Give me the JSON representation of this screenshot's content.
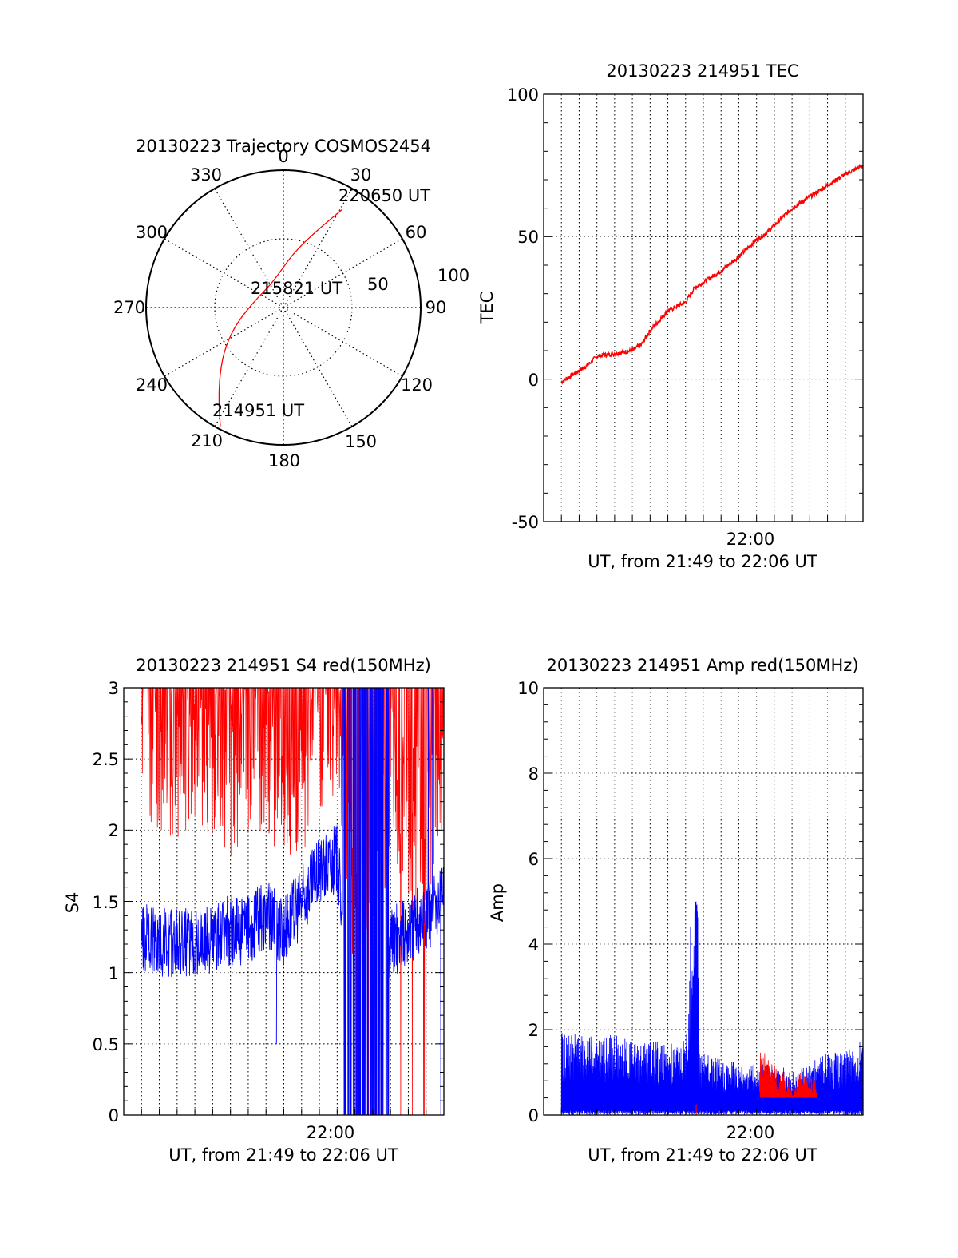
{
  "chart_data": [
    {
      "type": "polar",
      "title": "20130223 Trajectory COSMOS2454",
      "azimuth_labels": [
        "0",
        "30",
        "60",
        "90",
        "120",
        "150",
        "180",
        "210",
        "240",
        "270",
        "300",
        "330"
      ],
      "elevation_labels": [
        "50",
        "100"
      ],
      "trajectory": [
        {
          "azimuth": 208,
          "elevation": 2
        },
        {
          "azimuth": 214,
          "elevation": 14
        },
        {
          "azimuth": 224,
          "elevation": 30
        },
        {
          "azimuth": 236,
          "elevation": 44
        },
        {
          "azimuth": 252,
          "elevation": 58
        },
        {
          "azimuth": 285,
          "elevation": 71
        },
        {
          "azimuth": 338,
          "elevation": 72
        },
        {
          "azimuth": 10,
          "elevation": 54
        },
        {
          "azimuth": 24,
          "elevation": 34
        },
        {
          "azimuth": 31,
          "elevation": 15
        }
      ],
      "annotations": [
        "220650 UT",
        "215821 UT",
        "214951 UT"
      ],
      "color": "#ff0000"
    },
    {
      "type": "line",
      "title": "20130223 214951 TEC",
      "ylabel": "TEC",
      "xlabel": "UT, from 21:49 to 22:06 UT",
      "x_tick_label": "22:00",
      "y_ticks": [
        "100",
        "50",
        "0",
        "-50"
      ],
      "ylim": [
        -50,
        100
      ],
      "xlim_min": [
        0,
        17
      ],
      "grid": true,
      "series": [
        {
          "color": "#ff0000",
          "x": [
            0,
            1,
            1.5,
            2,
            3,
            4,
            4.5,
            5,
            6,
            7,
            7.5,
            8,
            9,
            10,
            11,
            11.5,
            12,
            13,
            14,
            14.5,
            15,
            16,
            17
          ],
          "values": [
            -1,
            3,
            5,
            8,
            9,
            10,
            12,
            17,
            24,
            27,
            32,
            34,
            38,
            43,
            49,
            51,
            54,
            60,
            64,
            66,
            68,
            72,
            75
          ]
        }
      ]
    },
    {
      "type": "line",
      "title": "20130223 214951 S4 red(150MHz)",
      "ylabel": "S4",
      "xlabel": "UT, from 21:49 to 22:06 UT",
      "x_tick_label": "22:00",
      "y_ticks": [
        "3",
        "2.5",
        "2",
        "1.5",
        "1",
        "0.5",
        "0"
      ],
      "ylim": [
        0,
        3
      ],
      "xlim_min": [
        0,
        17
      ],
      "grid": true,
      "series": [
        {
          "color": "#ff0000",
          "x": [
            0,
            1,
            2,
            3,
            4,
            5,
            6,
            7,
            8,
            9,
            10,
            11,
            12,
            13,
            14,
            15,
            16,
            17
          ],
          "values": [
            2.7,
            2.6,
            2.5,
            2.6,
            2.5,
            2.4,
            2.6,
            2.5,
            2.3,
            2.4,
            2.6,
            2.8,
            1.5,
            1.8,
            2.3,
            2.1,
            2.0,
            2.6
          ]
        },
        {
          "color": "#0000ff",
          "x": [
            0,
            1,
            2,
            3,
            4,
            5,
            6,
            7,
            8,
            9,
            10,
            11,
            12,
            13,
            14,
            15,
            16,
            17
          ],
          "values": [
            1.25,
            1.2,
            1.22,
            1.2,
            1.25,
            1.3,
            1.3,
            1.4,
            1.3,
            1.5,
            1.7,
            1.8,
            0.5,
            0.9,
            1.2,
            1.3,
            1.4,
            1.5
          ]
        }
      ]
    },
    {
      "type": "line",
      "title": "20130223 214951 Amp red(150MHz)",
      "ylabel": "Amp",
      "xlabel": "UT, from 21:49 to 22:06 UT",
      "x_tick_label": "22:00",
      "y_ticks": [
        "10",
        "8",
        "6",
        "4",
        "2",
        "0"
      ],
      "ylim": [
        0,
        10
      ],
      "xlim_min": [
        0,
        17
      ],
      "grid": true,
      "series": [
        {
          "color": "#0000ff",
          "x": [
            0,
            1,
            2,
            3,
            4,
            5,
            6,
            7,
            7.6,
            7.8,
            8,
            9,
            10,
            11,
            12,
            13,
            14,
            15,
            16,
            17
          ],
          "values": [
            1.3,
            1.3,
            1.2,
            1.3,
            1.2,
            1.2,
            1.1,
            1.2,
            5.0,
            1.0,
            1.0,
            0.9,
            0.9,
            0.8,
            0.8,
            0.7,
            0.8,
            1.0,
            1.0,
            1.2
          ]
        },
        {
          "color": "#ff0000",
          "x": [
            7.6,
            11.5,
            12,
            12.5,
            13,
            13.5,
            14
          ],
          "values": [
            0.2,
            1.2,
            0.9,
            0.8,
            0.6,
            0.9,
            0.7
          ]
        }
      ]
    }
  ]
}
